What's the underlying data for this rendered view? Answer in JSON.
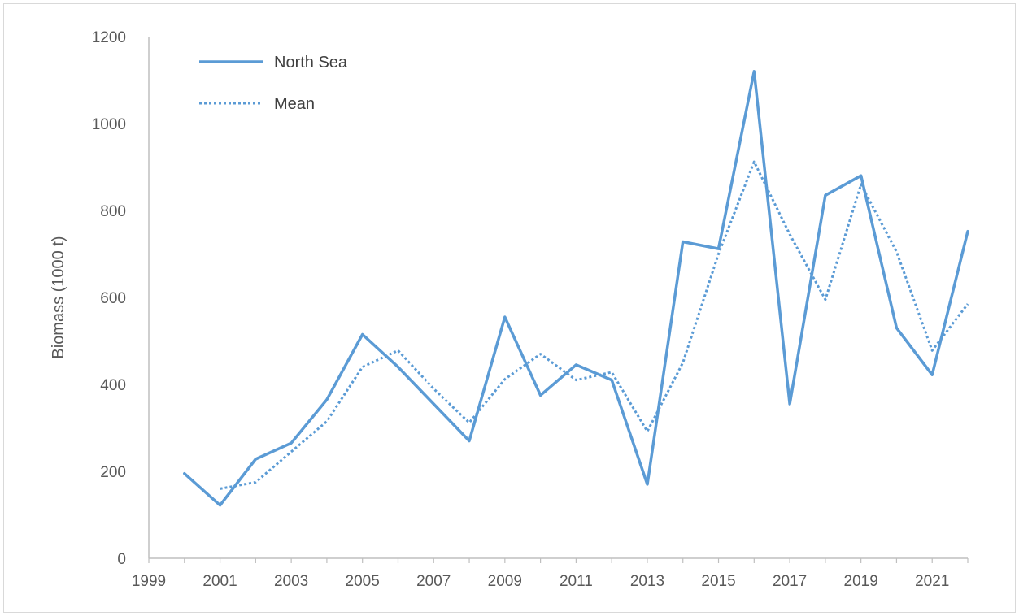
{
  "chart_data": {
    "type": "line",
    "title": "",
    "xlabel": "",
    "ylabel": "Biomass (1000 t)",
    "xlim": [
      1999,
      2022
    ],
    "ylim": [
      0,
      1200
    ],
    "x_ticks": [
      "1999",
      "2001",
      "2003",
      "2005",
      "2007",
      "2009",
      "2011",
      "2013",
      "2015",
      "2017",
      "2019",
      "2021"
    ],
    "y_ticks": [
      "0",
      "200",
      "400",
      "600",
      "800",
      "1000",
      "1200"
    ],
    "grid": false,
    "legend_position": "top-left",
    "series": [
      {
        "name": "North Sea",
        "style": "solid",
        "color": "#5b9bd5",
        "x": [
          2000,
          2001,
          2002,
          2003,
          2004,
          2005,
          2006,
          2007,
          2008,
          2009,
          2010,
          2011,
          2012,
          2013,
          2014,
          2015,
          2016,
          2017,
          2018,
          2019,
          2020,
          2021,
          2022
        ],
        "y": [
          195,
          122,
          228,
          265,
          365,
          515,
          440,
          355,
          270,
          555,
          375,
          445,
          410,
          170,
          728,
          712,
          1120,
          355,
          835,
          880,
          530,
          422,
          752
        ]
      },
      {
        "name": "Mean",
        "style": "dotted",
        "color": "#5b9bd5",
        "x": [
          2001,
          2002,
          2003,
          2004,
          2005,
          2006,
          2007,
          2008,
          2009,
          2010,
          2011,
          2012,
          2013,
          2014,
          2015,
          2016,
          2017,
          2018,
          2019,
          2020,
          2021,
          2022
        ],
        "y": [
          160,
          175,
          245,
          315,
          440,
          478,
          390,
          312,
          412,
          470,
          410,
          428,
          292,
          450,
          700,
          912,
          745,
          595,
          860,
          705,
          478,
          585
        ]
      }
    ]
  }
}
